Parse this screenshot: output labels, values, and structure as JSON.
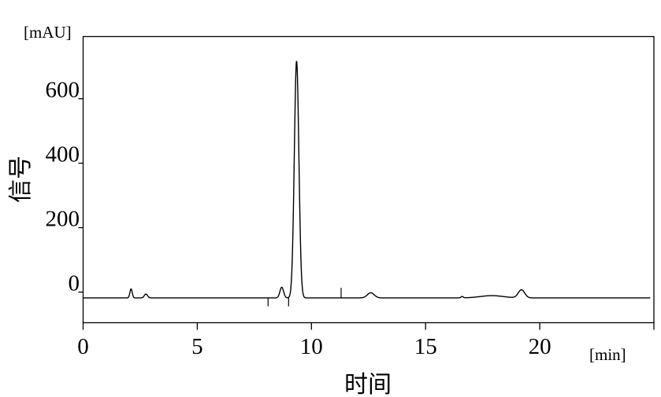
{
  "chart_data": {
    "type": "line",
    "title": "",
    "xlabel": "时间",
    "ylabel": "信号",
    "x_unit": "[min]",
    "y_unit": "[mAU]",
    "xlim": [
      0,
      25
    ],
    "ylim": [
      -95,
      793
    ],
    "x_ticks": [
      0,
      5,
      10,
      15,
      20,
      25
    ],
    "x_tick_labels": [
      "0",
      "5",
      "10",
      "15",
      "20",
      ""
    ],
    "y_ticks": [
      0,
      200,
      400,
      600
    ],
    "y_tick_labels": [
      "0",
      "200",
      "400",
      "600"
    ],
    "grid": false,
    "legend": "none",
    "line_color": "#000000",
    "baseline_mAU": -18,
    "peaks": [
      {
        "rt_min": 2.1,
        "height_mAU": 28,
        "sigma_min": 0.05
      },
      {
        "rt_min": 2.75,
        "height_mAU": 12,
        "sigma_min": 0.07
      },
      {
        "rt_min": 8.7,
        "height_mAU": 33,
        "sigma_min": 0.08
      },
      {
        "rt_min": 9.35,
        "height_mAU": 735,
        "sigma_min": 0.1
      },
      {
        "rt_min": 12.6,
        "height_mAU": 16,
        "sigma_min": 0.15
      },
      {
        "rt_min": 16.6,
        "height_mAU": 4,
        "sigma_min": 0.05
      },
      {
        "rt_min": 17.9,
        "height_mAU": 7,
        "sigma_min": 0.5
      },
      {
        "rt_min": 19.2,
        "height_mAU": 25,
        "sigma_min": 0.14
      }
    ],
    "spikes": [
      {
        "rt_min": 8.1,
        "to_mAU": -44
      },
      {
        "rt_min": 9.0,
        "to_mAU": -44
      },
      {
        "rt_min": 11.3,
        "to_mAU": 13
      }
    ]
  }
}
